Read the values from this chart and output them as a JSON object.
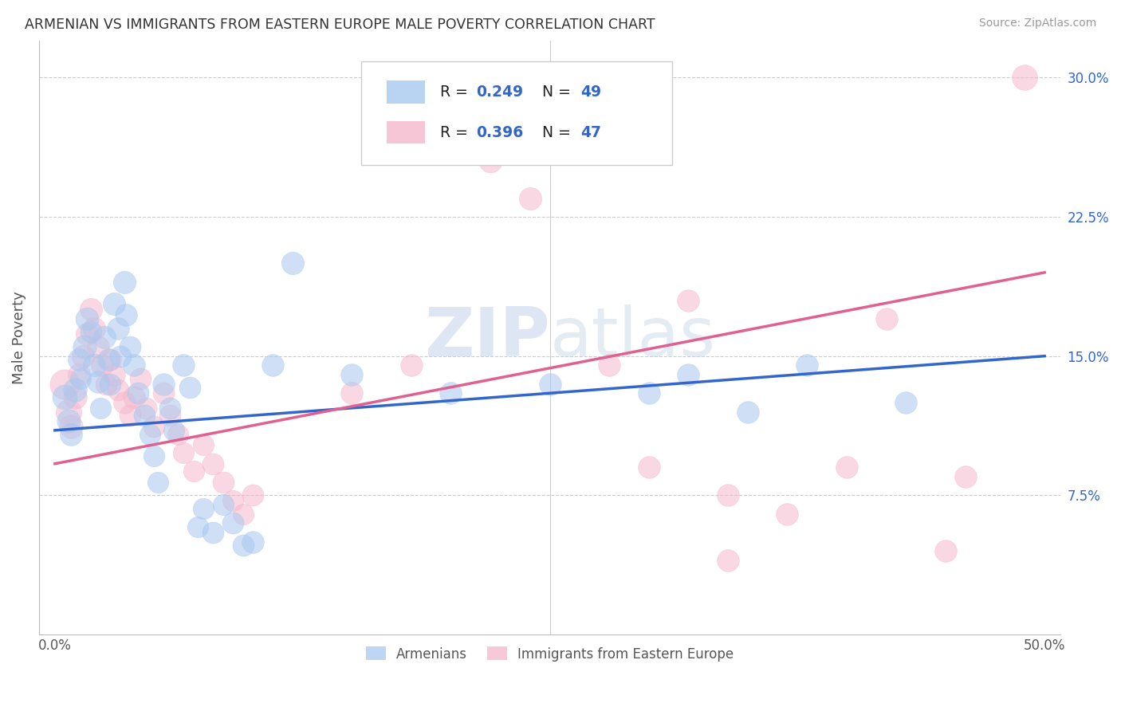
{
  "title": "ARMENIAN VS IMMIGRANTS FROM EASTERN EUROPE MALE POVERTY CORRELATION CHART",
  "source": "Source: ZipAtlas.com",
  "xlim": [
    0.0,
    0.5
  ],
  "ylim": [
    0.0,
    0.32
  ],
  "ylabel": "Male Poverty",
  "blue_R": 0.249,
  "blue_N": 49,
  "pink_R": 0.396,
  "pink_N": 47,
  "legend_labels": [
    "Armenians",
    "Immigrants from Eastern Europe"
  ],
  "blue_color": "#A8C8F0",
  "pink_color": "#F5B8CC",
  "blue_line_color": "#3366CC",
  "pink_line_color": "#E06090",
  "text_blue_color": "#3366CC",
  "watermark_color": "#D0DCF0",
  "ytick_vals": [
    0.075,
    0.15,
    0.225,
    0.3
  ],
  "ytick_labels": [
    "7.5%",
    "15.0%",
    "22.5%",
    "30.0%"
  ],
  "blue_points": [
    [
      0.005,
      0.128,
      55
    ],
    [
      0.007,
      0.115,
      50
    ],
    [
      0.008,
      0.108,
      45
    ],
    [
      0.01,
      0.132,
      50
    ],
    [
      0.012,
      0.148,
      45
    ],
    [
      0.013,
      0.138,
      40
    ],
    [
      0.015,
      0.155,
      50
    ],
    [
      0.016,
      0.17,
      48
    ],
    [
      0.018,
      0.163,
      42
    ],
    [
      0.02,
      0.145,
      46
    ],
    [
      0.022,
      0.136,
      44
    ],
    [
      0.023,
      0.122,
      40
    ],
    [
      0.025,
      0.16,
      46
    ],
    [
      0.027,
      0.148,
      44
    ],
    [
      0.028,
      0.135,
      42
    ],
    [
      0.03,
      0.178,
      46
    ],
    [
      0.032,
      0.165,
      44
    ],
    [
      0.033,
      0.15,
      42
    ],
    [
      0.035,
      0.19,
      46
    ],
    [
      0.036,
      0.172,
      44
    ],
    [
      0.038,
      0.155,
      42
    ],
    [
      0.04,
      0.145,
      44
    ],
    [
      0.042,
      0.13,
      42
    ],
    [
      0.045,
      0.118,
      42
    ],
    [
      0.048,
      0.108,
      40
    ],
    [
      0.05,
      0.096,
      40
    ],
    [
      0.052,
      0.082,
      40
    ],
    [
      0.055,
      0.135,
      44
    ],
    [
      0.058,
      0.122,
      42
    ],
    [
      0.06,
      0.11,
      40
    ],
    [
      0.065,
      0.145,
      44
    ],
    [
      0.068,
      0.133,
      42
    ],
    [
      0.072,
      0.058,
      40
    ],
    [
      0.075,
      0.068,
      40
    ],
    [
      0.08,
      0.055,
      42
    ],
    [
      0.085,
      0.07,
      40
    ],
    [
      0.09,
      0.06,
      42
    ],
    [
      0.095,
      0.048,
      42
    ],
    [
      0.1,
      0.05,
      44
    ],
    [
      0.11,
      0.145,
      44
    ],
    [
      0.12,
      0.2,
      46
    ],
    [
      0.15,
      0.14,
      44
    ],
    [
      0.2,
      0.13,
      44
    ],
    [
      0.25,
      0.135,
      44
    ],
    [
      0.3,
      0.13,
      44
    ],
    [
      0.32,
      0.14,
      44
    ],
    [
      0.35,
      0.12,
      44
    ],
    [
      0.38,
      0.145,
      44
    ],
    [
      0.43,
      0.125,
      44
    ]
  ],
  "pink_points": [
    [
      0.005,
      0.135,
      80
    ],
    [
      0.007,
      0.12,
      60
    ],
    [
      0.008,
      0.112,
      50
    ],
    [
      0.01,
      0.128,
      50
    ],
    [
      0.012,
      0.14,
      46
    ],
    [
      0.014,
      0.15,
      46
    ],
    [
      0.016,
      0.162,
      46
    ],
    [
      0.018,
      0.175,
      46
    ],
    [
      0.02,
      0.165,
      46
    ],
    [
      0.022,
      0.155,
      44
    ],
    [
      0.024,
      0.145,
      44
    ],
    [
      0.026,
      0.135,
      42
    ],
    [
      0.028,
      0.148,
      44
    ],
    [
      0.03,
      0.14,
      44
    ],
    [
      0.032,
      0.132,
      42
    ],
    [
      0.035,
      0.125,
      44
    ],
    [
      0.038,
      0.118,
      42
    ],
    [
      0.04,
      0.128,
      44
    ],
    [
      0.043,
      0.138,
      42
    ],
    [
      0.046,
      0.122,
      42
    ],
    [
      0.05,
      0.112,
      42
    ],
    [
      0.055,
      0.13,
      42
    ],
    [
      0.058,
      0.118,
      42
    ],
    [
      0.062,
      0.108,
      40
    ],
    [
      0.065,
      0.098,
      40
    ],
    [
      0.07,
      0.088,
      40
    ],
    [
      0.075,
      0.102,
      40
    ],
    [
      0.08,
      0.092,
      42
    ],
    [
      0.085,
      0.082,
      42
    ],
    [
      0.09,
      0.072,
      40
    ],
    [
      0.095,
      0.065,
      40
    ],
    [
      0.1,
      0.075,
      42
    ],
    [
      0.15,
      0.13,
      44
    ],
    [
      0.18,
      0.145,
      44
    ],
    [
      0.22,
      0.255,
      48
    ],
    [
      0.24,
      0.235,
      46
    ],
    [
      0.28,
      0.145,
      44
    ],
    [
      0.3,
      0.09,
      44
    ],
    [
      0.32,
      0.18,
      44
    ],
    [
      0.34,
      0.075,
      44
    ],
    [
      0.37,
      0.065,
      44
    ],
    [
      0.4,
      0.09,
      44
    ],
    [
      0.42,
      0.17,
      44
    ],
    [
      0.45,
      0.045,
      44
    ],
    [
      0.46,
      0.085,
      44
    ],
    [
      0.49,
      0.3,
      58
    ],
    [
      0.34,
      0.04,
      44
    ]
  ]
}
